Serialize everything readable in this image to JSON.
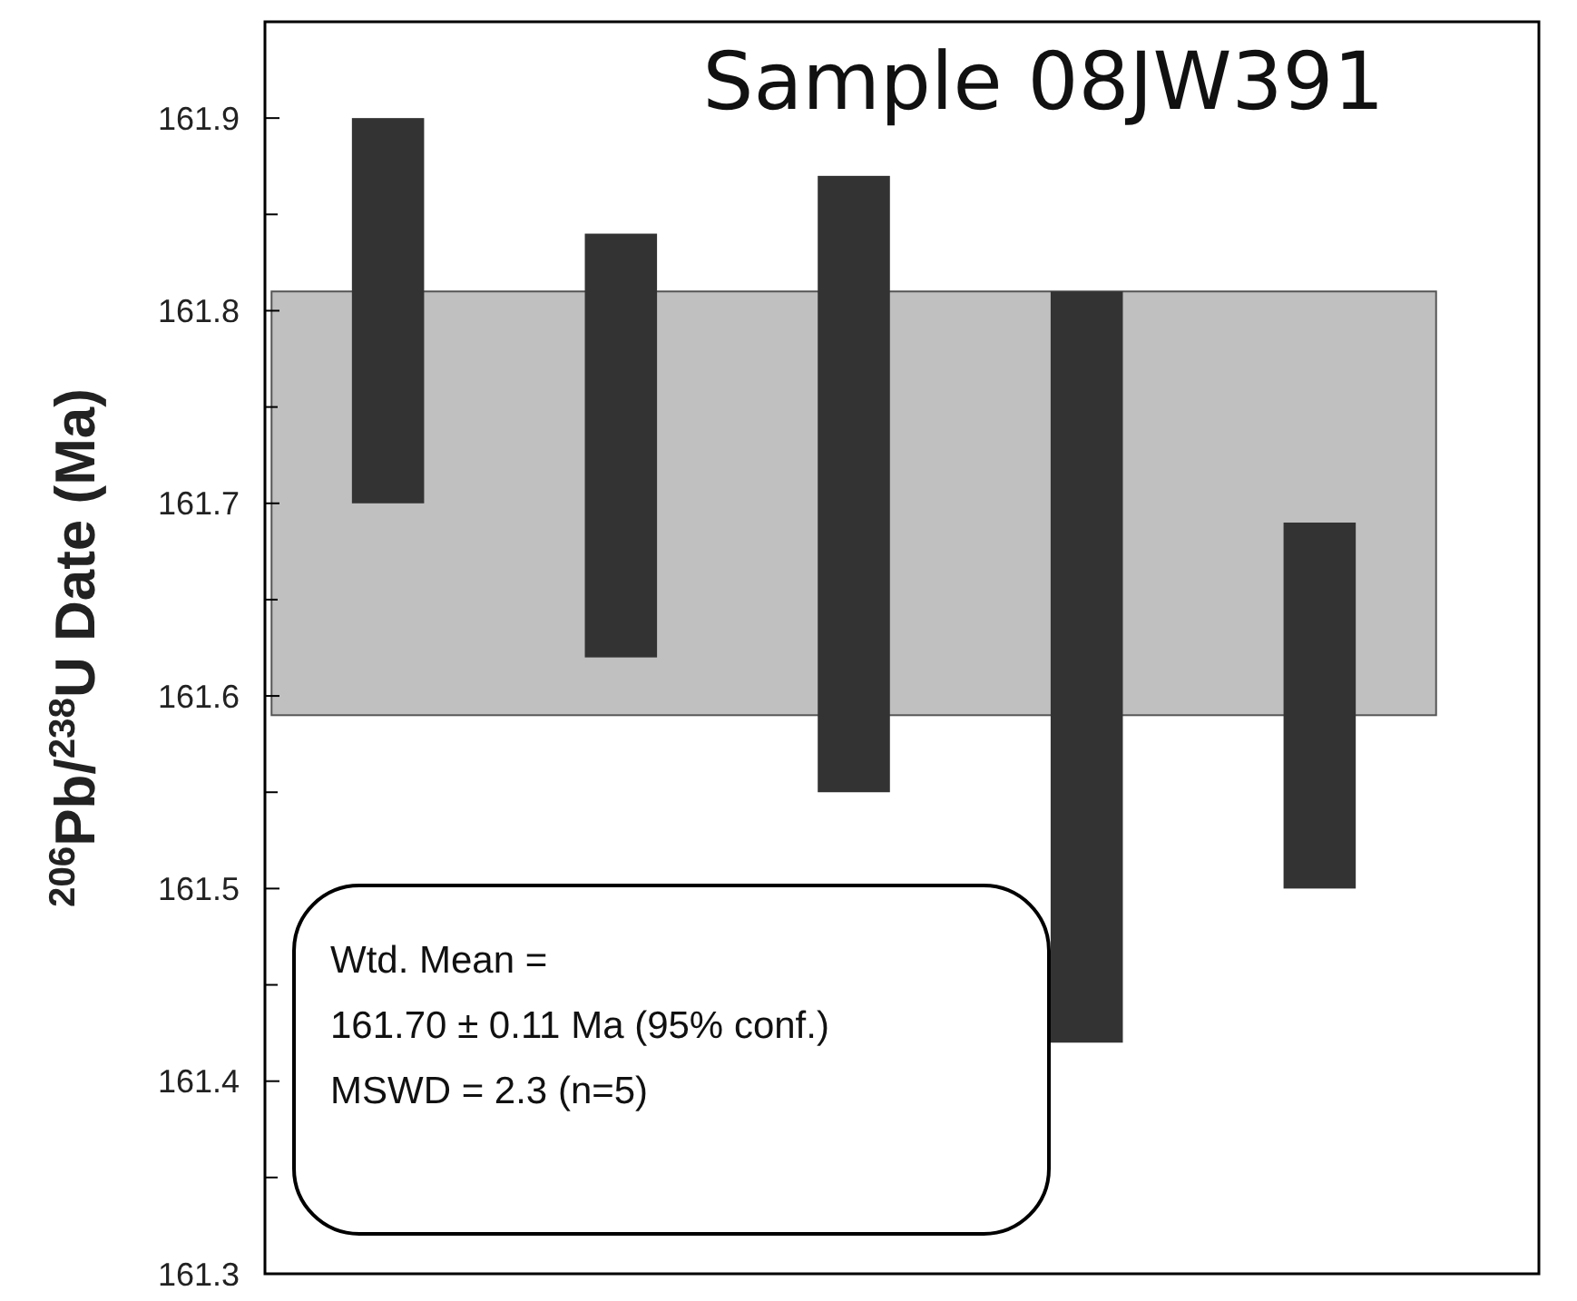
{
  "chart_data": {
    "type": "bar",
    "title": "Sample 08JW391",
    "ylabel": "$^{206}$Pb/$^{238}$U Date (Ma)",
    "categories": [
      null,
      null,
      null,
      null,
      null
    ],
    "values": [
      0.2,
      0.22,
      0.32,
      0.39,
      0.19
    ],
    "base": [
      161.7,
      161.62,
      161.55,
      161.42,
      161.5
    ],
    "color": "#333333",
    "ylim": [
      161.3,
      161.95
    ],
    "yticks": [
      161.3,
      {
        "value": 161.35,
        "label": null
      },
      161.4,
      {
        "value": 161.45,
        "label": null
      },
      161.5,
      {
        "value": 161.55,
        "label": null
      },
      161.6,
      {
        "value": 161.65,
        "label": null
      },
      161.7,
      {
        "value": 161.75,
        "label": null
      },
      161.8,
      {
        "value": 161.85,
        "label": null
      },
      161.9
    ],
    "bands": [
      {
        "axis": "y",
        "from": 161.59,
        "to": 161.81,
        "color": "#c0c0c0"
      }
    ],
    "annotations": [
      "Wtd. Mean =",
      "161.70 ± 0.11 Ma (95% conf.)",
      "MSWD = 2.3 (n=5)"
    ]
  }
}
